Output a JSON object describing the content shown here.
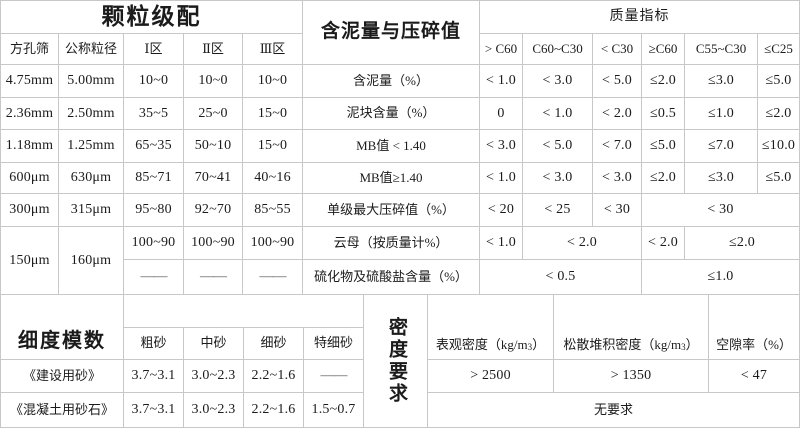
{
  "page": {
    "background": "#ffffff",
    "border_color": "#c8c8c8",
    "text_color": "#1b1b1b"
  },
  "gradation": {
    "title": "颗粒级配",
    "headers": [
      "方孔筛",
      "公称粒径",
      "Ⅰ区",
      "Ⅱ区",
      "Ⅲ区"
    ],
    "rows": [
      [
        "4.75mm",
        "5.00mm",
        "10~0",
        "10~0",
        "10~0"
      ],
      [
        "2.36mm",
        "2.50mm",
        "35~5",
        "25~0",
        "15~0"
      ],
      [
        "1.18mm",
        "1.25mm",
        "65~35",
        "50~10",
        "15~0"
      ],
      [
        "600μm",
        "630μm",
        "85~71",
        "70~41",
        "40~16"
      ],
      [
        "300μm",
        "315μm",
        "95~80",
        "92~70",
        "85~55"
      ],
      [
        "150μm",
        "160μm",
        "100~90",
        "100~90",
        "100~90"
      ],
      [
        "——",
        "——",
        "——"
      ]
    ]
  },
  "mud": {
    "title": "含泥量与压碎值",
    "rows": [
      "含泥量（%）",
      "泥块含量（%）",
      "MB值 < 1.40",
      "MB值≥1.40",
      "单级最大压碎值（%）",
      "云母（按质量计%）",
      "硫化物及硫酸盐含量（%）"
    ]
  },
  "quality": {
    "title": "质量指标",
    "headers": [
      "> C60",
      "C60~C30",
      "< C30",
      "≥C60",
      "C55~C30",
      "≤C25"
    ],
    "rows": {
      "mud_content": [
        "< 1.0",
        "< 3.0",
        "< 5.0",
        "≤2.0",
        "≤3.0",
        "≤5.0"
      ],
      "clay_lumps": [
        "0",
        "< 1.0",
        "< 2.0",
        "≤0.5",
        "≤1.0",
        "≤2.0"
      ],
      "mb_lt": [
        "< 3.0",
        "< 5.0",
        "< 7.0",
        "≤5.0",
        "≤7.0",
        "≤10.0"
      ],
      "mb_ge": [
        "< 1.0",
        "< 3.0",
        "< 3.0",
        "≤2.0",
        "≤3.0",
        "≤5.0"
      ],
      "crush": [
        "< 20",
        "< 25",
        "< 30",
        "< 30"
      ],
      "mica": [
        "< 1.0",
        "< 2.0",
        "< 2.0",
        "≤2.0"
      ],
      "sulfide": [
        "< 0.5",
        "≤1.0"
      ]
    }
  },
  "fineness": {
    "title": "细度模数",
    "headers": [
      "粗砂",
      "中砂",
      "细砂",
      "特细砂"
    ],
    "rows": [
      {
        "label": "《建设用砂》",
        "values": [
          "3.7~3.1",
          "3.0~2.3",
          "2.2~1.6",
          "——"
        ]
      },
      {
        "label": "《混凝土用砂石》",
        "values": [
          "3.7~3.1",
          "3.0~2.3",
          "2.2~1.6",
          "1.5~0.7"
        ]
      }
    ]
  },
  "density": {
    "title": "密度要求",
    "headers": [
      {
        "prefix": "表观密度（kg/m",
        "sup": "3",
        "suffix": "）"
      },
      {
        "prefix": "松散堆积密度（kg/m",
        "sup": "3",
        "suffix": "）"
      },
      {
        "prefix": "空隙率（%）",
        "sup": "",
        "suffix": ""
      }
    ],
    "values": [
      "> 2500",
      "> 1350",
      "< 47"
    ],
    "no_requirement": "无要求"
  }
}
